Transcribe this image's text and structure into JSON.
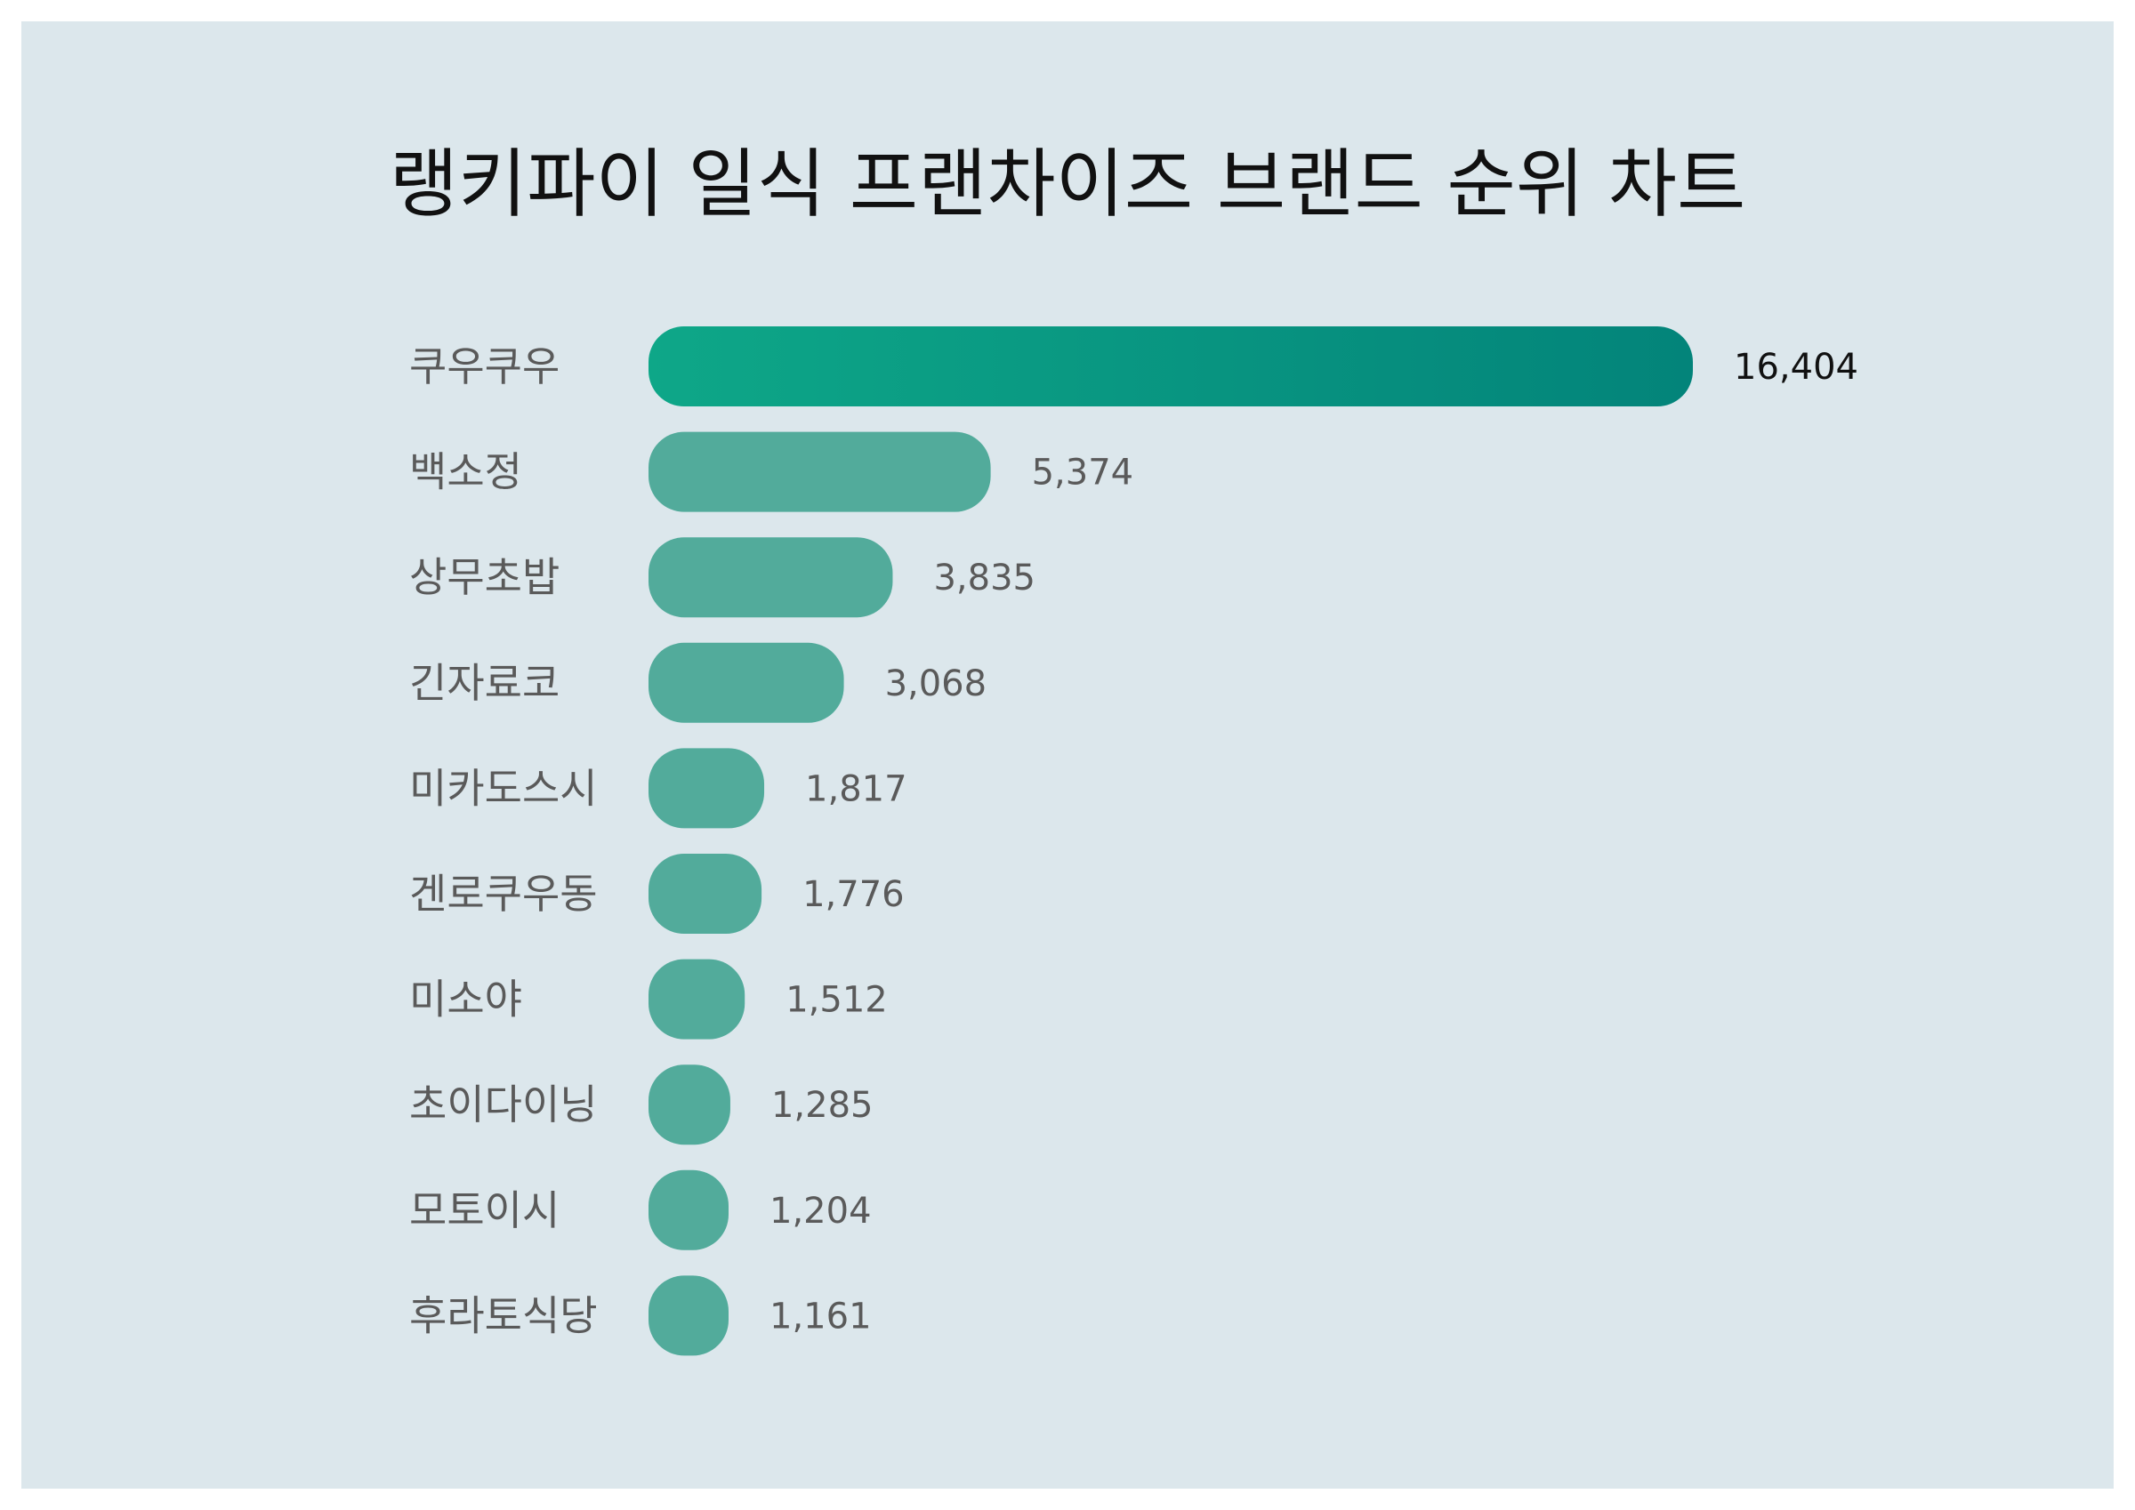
{
  "chart_data": {
    "type": "bar",
    "orientation": "horizontal",
    "title": "랭키파이 일식 프랜차이즈 브랜드 순위 차트",
    "categories": [
      "쿠우쿠우",
      "백소정",
      "상무초밥",
      "긴자료코",
      "미카도스시",
      "겐로쿠우동",
      "미소야",
      "초이다이닝",
      "모토이시",
      "후라토식당"
    ],
    "values": [
      16404,
      5374,
      3835,
      3068,
      1817,
      1776,
      1512,
      1285,
      1204,
      1161
    ],
    "value_labels": [
      "16,404",
      "5,374",
      "3,835",
      "3,068",
      "1,817",
      "1,776",
      "1,512",
      "1,285",
      "1,204",
      "1,161"
    ],
    "xlabel": "",
    "ylabel": "",
    "grid": false,
    "legend": "none"
  },
  "colors": {
    "background": "#dce7ec",
    "bar": "#52ab9b",
    "top_bar_gradient_start": "#0ea788",
    "top_bar_gradient_end": "#03847a",
    "title": "#111111",
    "category_label": "#5a5a5a",
    "value_label": "#5a5a5a",
    "top_value_label": "#111111"
  }
}
